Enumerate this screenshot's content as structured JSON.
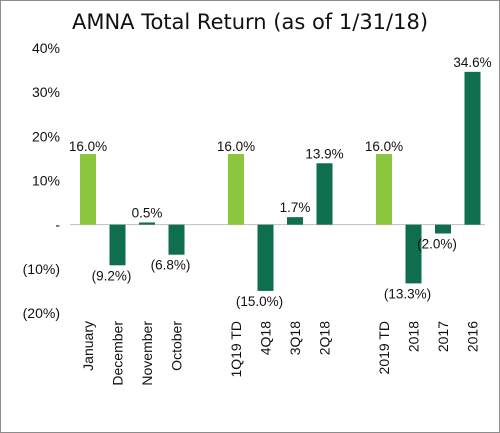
{
  "chart_data": {
    "type": "bar",
    "title": "AMNA Total Return (as of 1/31/18)",
    "xlabel": "",
    "ylabel": "",
    "ylim": [
      -20,
      40
    ],
    "yticks": [
      {
        "value": 40,
        "label": "40%"
      },
      {
        "value": 30,
        "label": "30%"
      },
      {
        "value": 20,
        "label": "20%"
      },
      {
        "value": 10,
        "label": "10%"
      },
      {
        "value": 0,
        "label": "-"
      },
      {
        "value": -10,
        "label": "(10%)"
      },
      {
        "value": -20,
        "label": "(20%)"
      }
    ],
    "grid": false,
    "groups": [
      {
        "bars": [
          {
            "category": "January",
            "value": 16.0,
            "label": "16.0%",
            "color": "#8cc63e"
          },
          {
            "category": "December",
            "value": -9.2,
            "label": "(9.2%)",
            "color": "#0f6e4e"
          },
          {
            "category": "November",
            "value": 0.5,
            "label": "0.5%",
            "color": "#0f6e4e"
          },
          {
            "category": "October",
            "value": -6.8,
            "label": "(6.8%)",
            "color": "#0f6e4e"
          }
        ]
      },
      {
        "bars": [
          {
            "category": "1Q19 TD",
            "value": 16.0,
            "label": "16.0%",
            "color": "#8cc63e"
          },
          {
            "category": "4Q18",
            "value": -15.0,
            "label": "(15.0%)",
            "color": "#0f6e4e"
          },
          {
            "category": "3Q18",
            "value": 1.7,
            "label": "1.7%",
            "color": "#0f6e4e"
          },
          {
            "category": "2Q18",
            "value": 13.9,
            "label": "13.9%",
            "color": "#0f6e4e"
          }
        ]
      },
      {
        "bars": [
          {
            "category": "2019 TD",
            "value": 16.0,
            "label": "16.0%",
            "color": "#8cc63e"
          },
          {
            "category": "2018",
            "value": -13.3,
            "label": "(13.3%)",
            "color": "#0f6e4e"
          },
          {
            "category": "2017",
            "value": -2.0,
            "label": "(2.0%)",
            "color": "#0f6e4e"
          },
          {
            "category": "2016",
            "value": 34.6,
            "label": "34.6%",
            "color": "#0f6e4e"
          }
        ]
      }
    ]
  }
}
